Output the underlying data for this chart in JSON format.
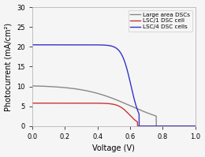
{
  "xlabel": "Voltage (V)",
  "ylabel": "Photocurrent (mA/cm²)",
  "xlim": [
    0.0,
    1.0
  ],
  "ylim": [
    0,
    30
  ],
  "yticks": [
    0,
    5,
    10,
    15,
    20,
    25,
    30
  ],
  "xticks": [
    0.0,
    0.2,
    0.4,
    0.6,
    0.8,
    1.0
  ],
  "curves": [
    {
      "label": "Large area DSCs",
      "color": "#888888",
      "Jsc": 10.3,
      "Voc": 0.76,
      "FF_knee": 0.6,
      "sharpness": 7,
      "slope": -1.5
    },
    {
      "label": "LSC/1 DSC cell",
      "color": "#cc3333",
      "Jsc": 5.8,
      "Voc": 0.645,
      "FF_knee": 0.595,
      "sharpness": 30,
      "slope": 0
    },
    {
      "label": "LSC/4 DSC cells",
      "color": "#3333cc",
      "Jsc": 20.5,
      "Voc": 0.655,
      "FF_knee": 0.605,
      "sharpness": 35,
      "slope": 0
    }
  ],
  "background_color": "#f5f5f5",
  "figsize": [
    2.6,
    1.99
  ],
  "dpi": 100
}
